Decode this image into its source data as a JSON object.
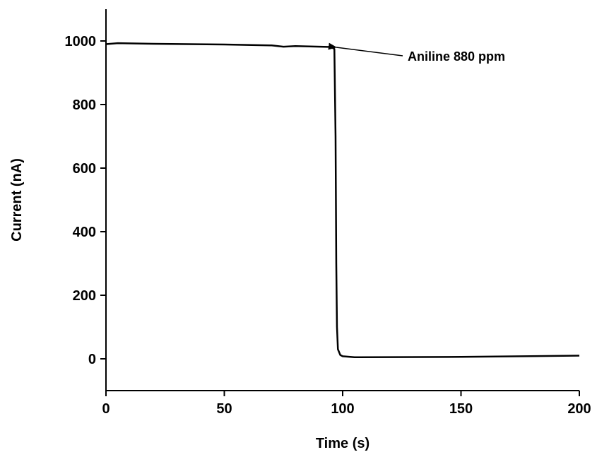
{
  "chart_data": {
    "type": "line",
    "x_label": "Time  (s)",
    "y_label": "Current (nA)",
    "annotation": "Aniline 880 ppm",
    "xlim": [
      0,
      200
    ],
    "xticks": [
      0,
      50,
      100,
      150,
      200
    ],
    "ylim": [
      -100,
      1100
    ],
    "yticks": [
      0,
      200,
      400,
      600,
      800,
      1000
    ],
    "series": [
      {
        "name": "Current",
        "color": "#000000",
        "x": [
          0,
          5,
          20,
          50,
          70,
          75,
          80,
          95,
          96.5,
          97,
          97.3,
          97.6,
          98,
          99,
          100,
          105,
          150,
          200
        ],
        "values": [
          990,
          993,
          991,
          989,
          986,
          982,
          984,
          981,
          975,
          700,
          300,
          100,
          30,
          12,
          8,
          5,
          6,
          10
        ]
      }
    ]
  }
}
